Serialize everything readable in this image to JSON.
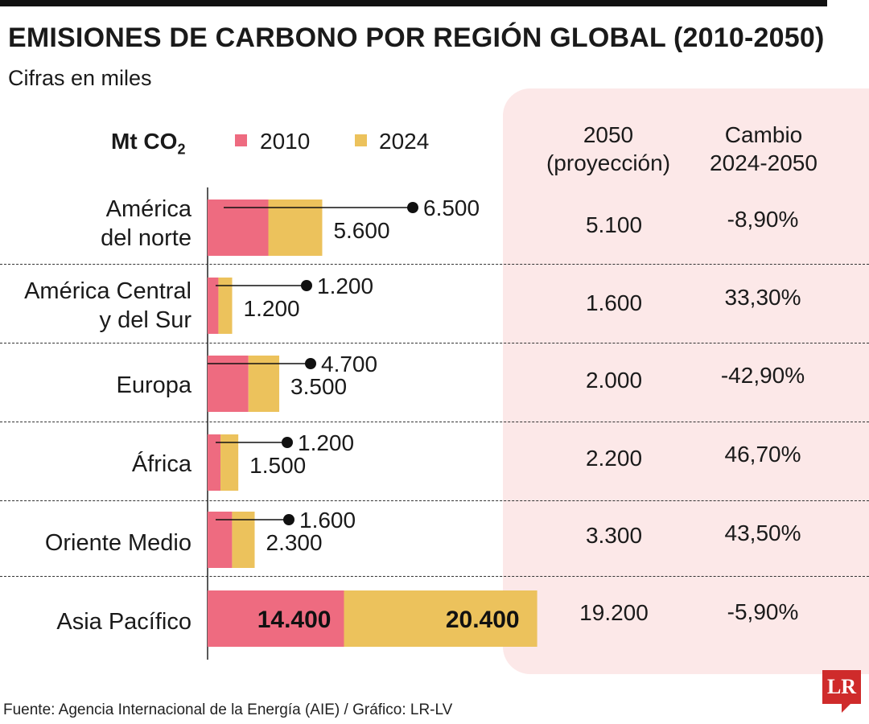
{
  "title": "EMISIONES DE CARBONO POR REGIÓN GLOBAL (2010-2050)",
  "subtitle": "Cifras en miles",
  "unit_main": "Mt CO",
  "unit_sub": "2",
  "legend": [
    {
      "label": "2010",
      "color": "#ee6b80"
    },
    {
      "label": "2024",
      "color": "#ecc25c"
    }
  ],
  "columns": {
    "projection_line1": "2050",
    "projection_line2": "(proyección)",
    "change_line1": "Cambio",
    "change_line2": "2024-2050"
  },
  "rows": [
    {
      "line1": "América",
      "line2": "del norte",
      "projection": "5.100",
      "change": "-8,90%"
    },
    {
      "line1": "América Central",
      "line2": "y del Sur",
      "projection": "1.600",
      "change": "33,30%"
    },
    {
      "line1": "Europa",
      "line2": "",
      "projection": "2.000",
      "change": "-42,90%"
    },
    {
      "line1": "África",
      "line2": "",
      "projection": "2.200",
      "change": "46,70%"
    },
    {
      "line1": "Oriente Medio",
      "line2": "",
      "projection": "3.300",
      "change": "43,50%"
    },
    {
      "line1": "Asia Pacífico",
      "line2": "",
      "projection": "19.200",
      "change": "-5,90%"
    }
  ],
  "chart_data": {
    "type": "bar",
    "categories": [
      "América del norte",
      "América Central y del Sur",
      "Europa",
      "África",
      "Oriente Medio",
      "Asia Pacífico"
    ],
    "series": [
      {
        "name": "2010",
        "values": [
          6500,
          1200,
          4700,
          1200,
          1600,
          14400
        ],
        "labels": [
          "6.500",
          "1.200",
          "4.700",
          "1.200",
          "1.600",
          "14.400"
        ]
      },
      {
        "name": "2024",
        "values": [
          5600,
          1200,
          3500,
          1500,
          2300,
          20400
        ],
        "labels": [
          "5.600",
          "1.200",
          "3.500",
          "1.500",
          "2.300",
          "20.400"
        ]
      }
    ],
    "colors": {
      "2010": "#ee6b80",
      "2024": "#ecc25c"
    },
    "stacked": true,
    "orientation": "horizontal",
    "xlim": [
      0,
      36000
    ]
  },
  "footer": "Fuente:  Agencia Internacional de la Energía (AIE) / Gráfico: LR-LV",
  "logo_text": "LR"
}
